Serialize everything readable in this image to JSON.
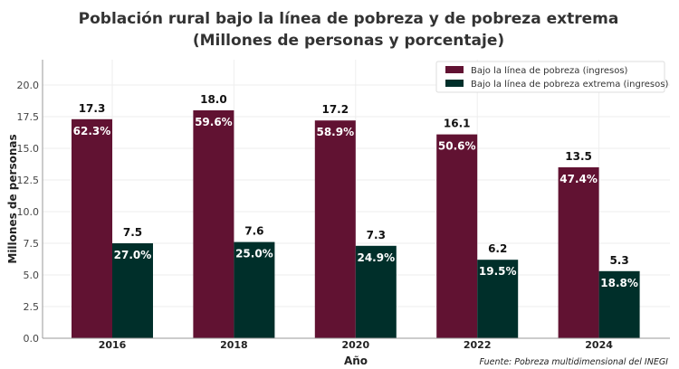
{
  "chart_data": {
    "type": "bar",
    "title": "Población rural bajo la línea de pobreza y de pobreza extrema",
    "subtitle": "(Millones de personas y porcentaje)",
    "xlabel": "Año",
    "ylabel": "Millones de personas",
    "categories": [
      "2016",
      "2018",
      "2020",
      "2022",
      "2024"
    ],
    "ylim": [
      0,
      22
    ],
    "yticks": [
      "0.0",
      "2.5",
      "5.0",
      "7.5",
      "10.0",
      "12.5",
      "15.0",
      "17.5",
      "20.0"
    ],
    "grid": true,
    "legend_position": "top-right",
    "series": [
      {
        "name": "Bajo la línea de pobreza (ingresos)",
        "color": "#611232",
        "values": [
          17.3,
          18.0,
          17.2,
          16.1,
          13.5
        ],
        "value_labels": [
          "17.3",
          "18.0",
          "17.2",
          "16.1",
          "13.5"
        ],
        "percent_labels": [
          "62.3%",
          "59.6%",
          "58.9%",
          "50.6%",
          "47.4%"
        ]
      },
      {
        "name": "Bajo la línea de pobreza extrema (ingresos)",
        "color": "#002F2A",
        "values": [
          7.5,
          7.6,
          7.3,
          6.2,
          5.3
        ],
        "value_labels": [
          "7.5",
          "7.6",
          "7.3",
          "6.2",
          "5.3"
        ],
        "percent_labels": [
          "27.0%",
          "25.0%",
          "24.9%",
          "19.5%",
          "18.8%"
        ]
      }
    ],
    "source": "Fuente: Pobreza multidimensional del INEGI"
  }
}
